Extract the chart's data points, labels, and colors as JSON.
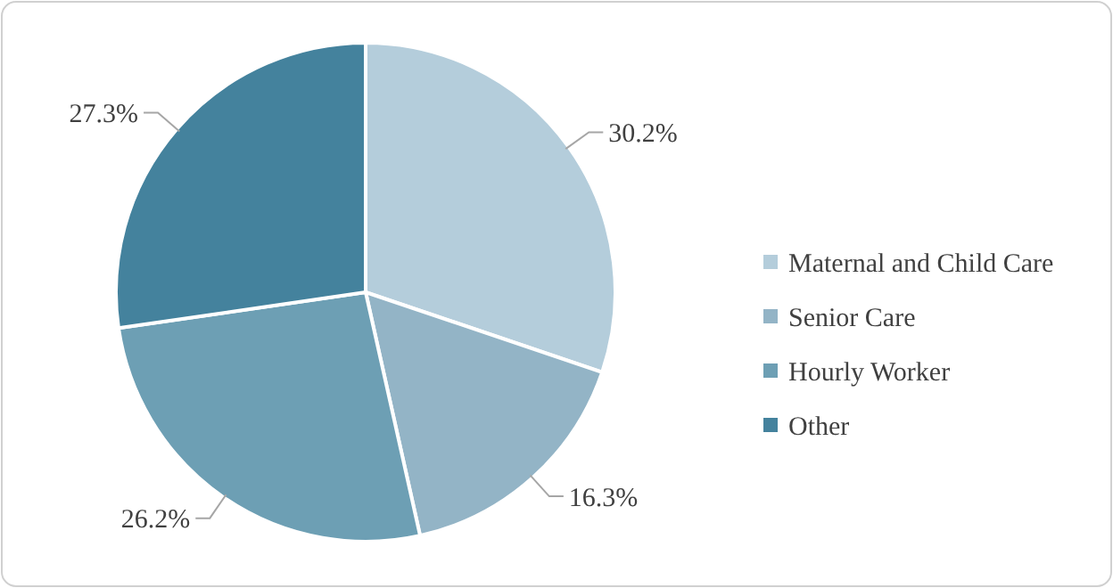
{
  "chart_data": {
    "type": "pie",
    "categories": [
      "Maternal and Child Care",
      "Senior Care",
      "Hourly Worker",
      "Other"
    ],
    "values": [
      30.2,
      16.3,
      26.2,
      27.3
    ],
    "colors": [
      "#b4cddb",
      "#93b4c6",
      "#6d9fb4",
      "#44829d"
    ],
    "value_labels": [
      "30.2%",
      "16.3%",
      "26.2%",
      "27.3%"
    ],
    "legend": "right"
  }
}
